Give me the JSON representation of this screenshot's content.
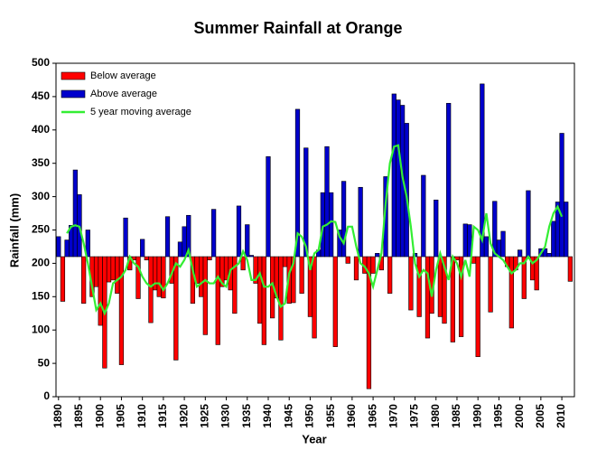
{
  "chart_data": {
    "type": "bar",
    "title": "Summer Rainfall at Orange",
    "xlabel": "Year",
    "ylabel": "Rainfall (mm)",
    "x": [
      1890,
      1891,
      1892,
      1893,
      1894,
      1895,
      1896,
      1897,
      1898,
      1899,
      1900,
      1901,
      1902,
      1903,
      1904,
      1905,
      1906,
      1907,
      1908,
      1909,
      1910,
      1911,
      1912,
      1913,
      1914,
      1915,
      1916,
      1917,
      1918,
      1919,
      1920,
      1921,
      1922,
      1923,
      1924,
      1925,
      1926,
      1927,
      1928,
      1929,
      1930,
      1931,
      1932,
      1933,
      1934,
      1935,
      1936,
      1937,
      1938,
      1939,
      1940,
      1941,
      1942,
      1943,
      1944,
      1945,
      1946,
      1947,
      1948,
      1949,
      1950,
      1951,
      1952,
      1953,
      1954,
      1955,
      1956,
      1957,
      1958,
      1959,
      1960,
      1961,
      1962,
      1963,
      1964,
      1965,
      1966,
      1967,
      1968,
      1969,
      1970,
      1971,
      1972,
      1973,
      1974,
      1975,
      1976,
      1977,
      1978,
      1979,
      1980,
      1981,
      1982,
      1983,
      1984,
      1985,
      1986,
      1987,
      1988,
      1989,
      1990,
      1991,
      1992,
      1993,
      1994,
      1995,
      1996,
      1997,
      1998,
      1999,
      2000,
      2001,
      2002,
      2003,
      2004,
      2005,
      2006,
      2007,
      2008,
      2009,
      2010,
      2011,
      2012
    ],
    "baseline": 210,
    "series": [
      {
        "name": "Below average",
        "color": "#ff0000",
        "values": [
          null,
          143,
          null,
          null,
          null,
          null,
          140,
          null,
          150,
          165,
          107,
          43,
          172,
          175,
          155,
          48,
          null,
          190,
          205,
          147,
          null,
          205,
          111,
          160,
          150,
          148,
          null,
          170,
          55,
          null,
          null,
          null,
          140,
          170,
          150,
          93,
          205,
          null,
          78,
          165,
          175,
          160,
          125,
          null,
          190,
          null,
          null,
          170,
          110,
          78,
          null,
          118,
          148,
          85,
          195,
          140,
          141,
          null,
          155,
          null,
          120,
          88,
          null,
          null,
          null,
          null,
          75,
          null,
          null,
          200,
          null,
          175,
          null,
          185,
          12,
          185,
          null,
          190,
          null,
          155,
          null,
          null,
          null,
          null,
          130,
          null,
          120,
          null,
          88,
          125,
          null,
          120,
          110,
          null,
          82,
          205,
          90,
          null,
          null,
          200,
          60,
          null,
          null,
          127,
          null,
          null,
          null,
          195,
          103,
          190,
          null,
          147,
          null,
          175,
          160,
          null,
          null,
          null,
          null,
          null,
          null,
          null,
          173
        ]
      },
      {
        "name": "Above average",
        "color": "#0000cc",
        "values": [
          240,
          null,
          235,
          257,
          340,
          303,
          null,
          250,
          null,
          null,
          null,
          null,
          null,
          null,
          null,
          null,
          268,
          null,
          null,
          null,
          236,
          null,
          null,
          null,
          null,
          null,
          270,
          null,
          null,
          232,
          255,
          272,
          null,
          null,
          null,
          null,
          null,
          281,
          null,
          null,
          null,
          null,
          null,
          286,
          null,
          258,
          212,
          null,
          null,
          null,
          360,
          null,
          null,
          null,
          null,
          null,
          null,
          431,
          null,
          373,
          null,
          null,
          220,
          306,
          375,
          306,
          null,
          250,
          323,
          null,
          210,
          null,
          314,
          null,
          null,
          null,
          215,
          null,
          330,
          null,
          454,
          445,
          437,
          410,
          null,
          215,
          null,
          332,
          null,
          null,
          295,
          null,
          null,
          440,
          null,
          null,
          null,
          259,
          258,
          null,
          null,
          469,
          240,
          null,
          293,
          235,
          248,
          null,
          null,
          null,
          220,
          null,
          309,
          null,
          null,
          222,
          222,
          215,
          263,
          292,
          395,
          292,
          null
        ]
      },
      {
        "name": "5 year moving average",
        "color": "#33ee33",
        "type": "line",
        "values": [
          null,
          null,
          245,
          255,
          257,
          255,
          230,
          200,
          165,
          130,
          140,
          125,
          140,
          170,
          175,
          180,
          190,
          210,
          200,
          195,
          180,
          170,
          165,
          170,
          170,
          160,
          170,
          185,
          200,
          195,
          205,
          220,
          190,
          165,
          170,
          175,
          170,
          170,
          180,
          170,
          165,
          190,
          195,
          200,
          218,
          205,
          175,
          175,
          185,
          165,
          165,
          170,
          150,
          135,
          140,
          185,
          200,
          245,
          240,
          225,
          190,
          215,
          220,
          255,
          258,
          263,
          262,
          240,
          230,
          255,
          255,
          225,
          200,
          195,
          185,
          165,
          190,
          215,
          290,
          350,
          375,
          377,
          330,
          300,
          255,
          200,
          180,
          190,
          185,
          150,
          190,
          215,
          195,
          175,
          210,
          200,
          180,
          205,
          180,
          255,
          250,
          235,
          275,
          230,
          215,
          210,
          205,
          195,
          185,
          190,
          200,
          200,
          210,
          200,
          205,
          215,
          225,
          255,
          275,
          285,
          270,
          null,
          null
        ]
      }
    ],
    "xlim": [
      1889.4,
      2013
    ],
    "xticks": [
      1890,
      1895,
      1900,
      1905,
      1910,
      1915,
      1920,
      1925,
      1930,
      1935,
      1940,
      1945,
      1950,
      1955,
      1960,
      1965,
      1970,
      1975,
      1980,
      1985,
      1990,
      1995,
      2000,
      2005,
      2010
    ],
    "ylim": [
      0,
      500
    ],
    "yticks": [
      0,
      50,
      100,
      150,
      200,
      250,
      300,
      350,
      400,
      450,
      500
    ],
    "legend": "upper left"
  }
}
